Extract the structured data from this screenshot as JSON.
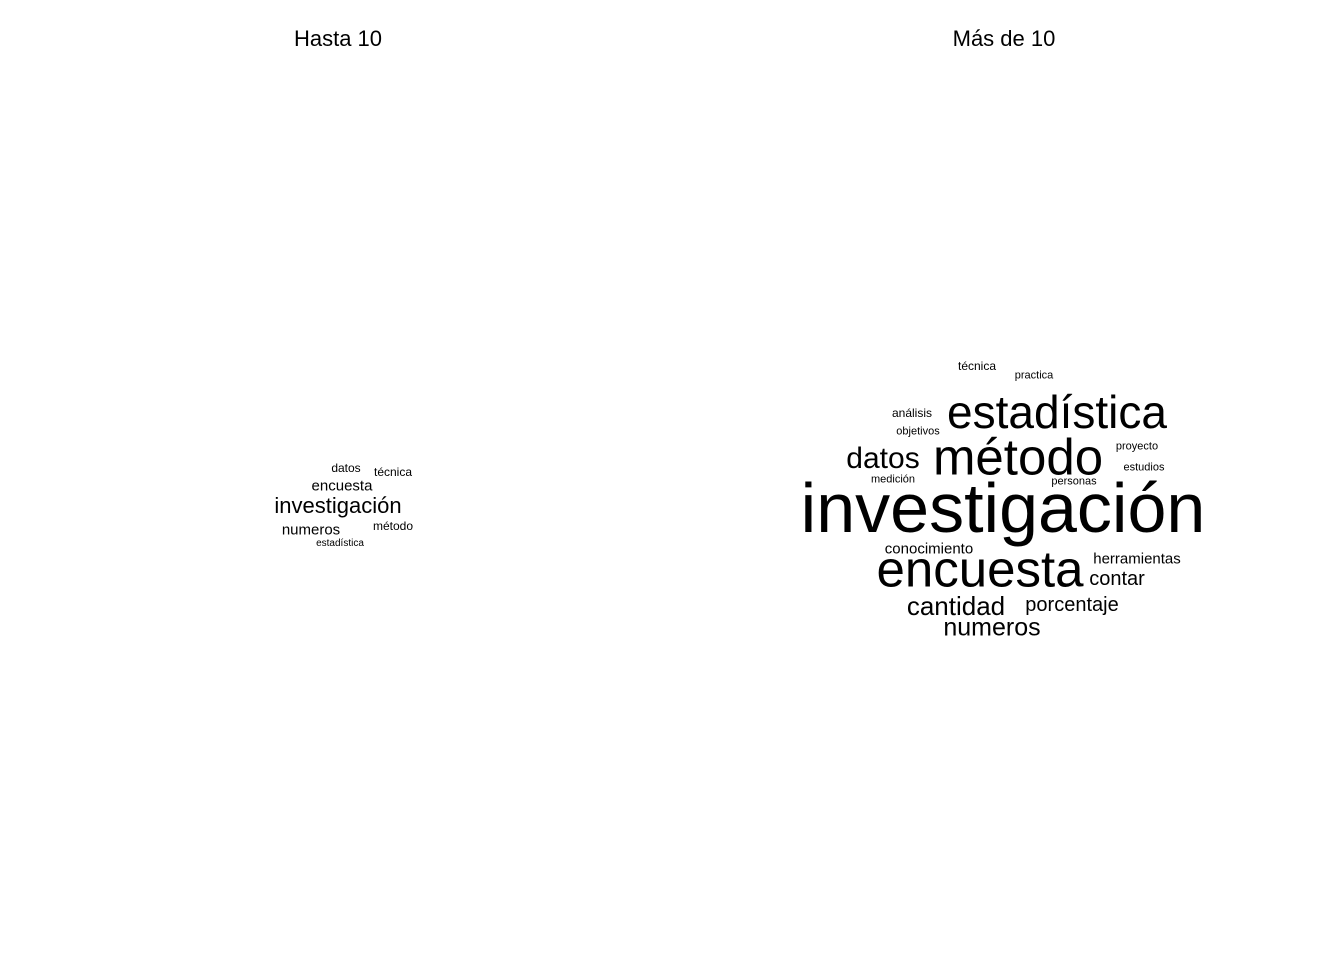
{
  "chart_data": [
    {
      "type": "wordcloud",
      "title": "Hasta 10",
      "words": [
        {
          "text": "investigación",
          "freq": 5
        },
        {
          "text": "encuesta",
          "freq": 3
        },
        {
          "text": "numeros",
          "freq": 3
        },
        {
          "text": "datos",
          "freq": 2
        },
        {
          "text": "técnica",
          "freq": 2
        },
        {
          "text": "método",
          "freq": 2
        },
        {
          "text": "estadística",
          "freq": 1
        }
      ]
    },
    {
      "type": "wordcloud",
      "title": "Más de 10",
      "words": [
        {
          "text": "investigación",
          "freq": 30
        },
        {
          "text": "método",
          "freq": 17
        },
        {
          "text": "encuesta",
          "freq": 17
        },
        {
          "text": "estadística",
          "freq": 15
        },
        {
          "text": "datos",
          "freq": 9
        },
        {
          "text": "cantidad",
          "freq": 8
        },
        {
          "text": "numeros",
          "freq": 7
        },
        {
          "text": "porcentaje",
          "freq": 6
        },
        {
          "text": "contar",
          "freq": 6
        },
        {
          "text": "conocimiento",
          "freq": 4
        },
        {
          "text": "herramientas",
          "freq": 4
        },
        {
          "text": "técnica",
          "freq": 3
        },
        {
          "text": "análisis",
          "freq": 3
        },
        {
          "text": "practica",
          "freq": 2
        },
        {
          "text": "objetivos",
          "freq": 2
        },
        {
          "text": "proyecto",
          "freq": 2
        },
        {
          "text": "estudios",
          "freq": 2
        },
        {
          "text": "medición",
          "freq": 2
        },
        {
          "text": "personas",
          "freq": 2
        }
      ]
    }
  ]
}
